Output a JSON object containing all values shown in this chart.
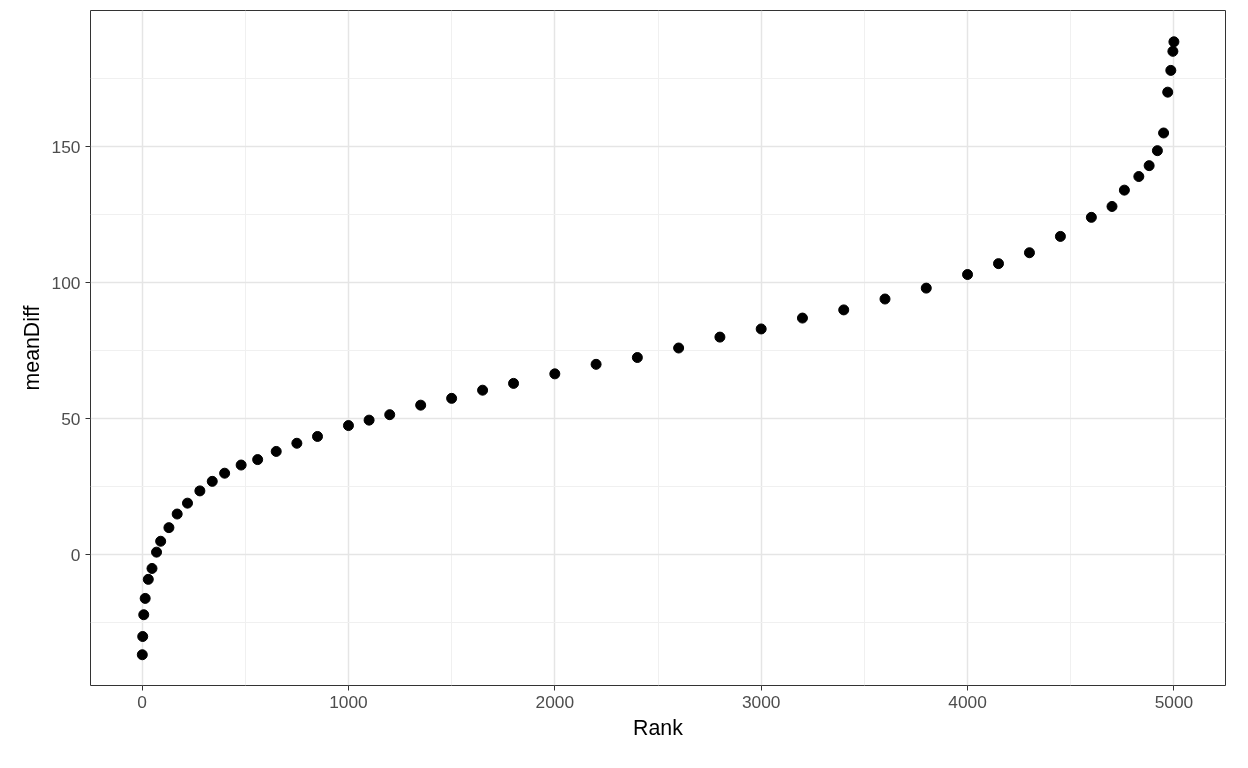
{
  "chart_data": {
    "type": "scatter",
    "xlabel": "Rank",
    "ylabel": "meanDiff",
    "x": [
      1,
      3,
      8,
      15,
      30,
      48,
      70,
      90,
      130,
      170,
      220,
      280,
      340,
      400,
      480,
      560,
      650,
      750,
      850,
      1000,
      1100,
      1200,
      1350,
      1500,
      1650,
      1800,
      2000,
      2200,
      2400,
      2600,
      2800,
      3000,
      3200,
      3400,
      3600,
      3800,
      4000,
      4150,
      4300,
      4450,
      4600,
      4700,
      4760,
      4830,
      4880,
      4920,
      4950,
      4970,
      4985,
      4995,
      5000
    ],
    "series": [
      {
        "color": "#000000",
        "values": [
          -36.7,
          -30,
          -22,
          -16,
          -9,
          -5,
          1,
          5,
          10,
          15,
          19,
          23.5,
          27,
          30,
          33,
          35,
          38,
          41,
          43.5,
          47.5,
          49.5,
          51.5,
          55,
          57.5,
          60.5,
          63,
          66.5,
          70,
          72.5,
          76,
          80,
          83,
          87,
          90,
          94,
          98,
          103,
          107,
          111,
          117,
          124,
          128,
          134,
          139,
          143,
          148.5,
          155,
          170,
          178,
          185,
          188.5
        ]
      }
    ],
    "xlim": [
      -250,
      5250
    ],
    "ylim": [
      -48,
      200
    ],
    "xticks": [
      0,
      1000,
      2000,
      3000,
      4000,
      5000
    ],
    "yticks": [
      0,
      50,
      100,
      150
    ],
    "grid": true,
    "marker": "circle"
  }
}
